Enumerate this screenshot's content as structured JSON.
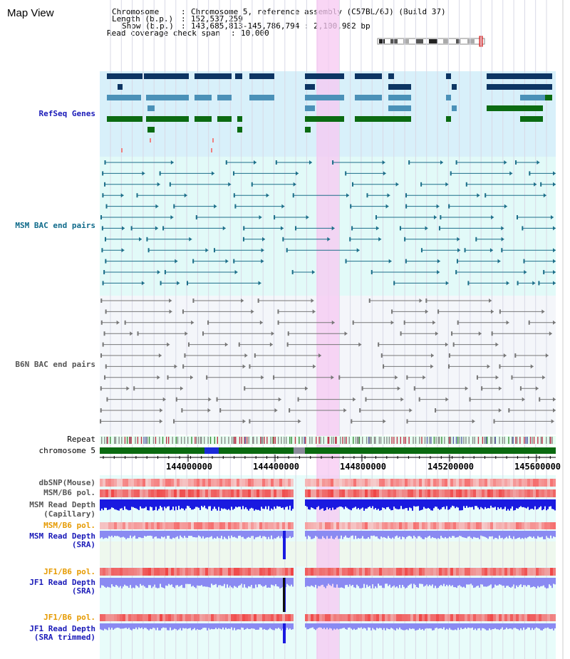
{
  "page": {
    "title": "Map View"
  },
  "header": {
    "chromosome_label": "Chromosome",
    "chromosome_value": "Chromosome 5, reference assembly (C57BL/6J) (Build 37)",
    "length_label": "Length (b.p.)",
    "length_value": "152,537,259",
    "show_label": "Show (b.p.)",
    "show_value": "143,685,813-145,786,794 : 2,100,982 bp",
    "coverage_label": "Read coverage check span",
    "coverage_value": "10,000"
  },
  "tracks": {
    "refseq": "RefSeq Genes",
    "msm_bac": "MSM BAC end pairs",
    "b6n_bac": "B6N BAC end pairs",
    "repeat": "Repeat",
    "chromosome": "chromosome 5",
    "dbsnp": "dbSNP(Mouse)",
    "msm_b6_pol": "MSM/B6 pol.",
    "msm_read_cap_1": "MSM Read Depth",
    "msm_read_cap_2": "(Capillary)",
    "msm_b6_pol2": "MSM/B6 pol.",
    "msm_read_sra_1": "MSM Read Depth",
    "msm_read_sra_2": "(SRA)",
    "jf1_b6_pol": "JF1/B6 pol.",
    "jf1_read_sra_1": "JF1 Read Depth",
    "jf1_read_sra_2": "(SRA)",
    "jf1_b6_pol2": "JF1/B6 pol.",
    "jf1_read_trim_1": "JF1 Read Depth",
    "jf1_read_trim_2": "(SRA trimmed)"
  },
  "axis": {
    "positions": [
      "144000000",
      "144400000",
      "144800000",
      "145200000",
      "145600000"
    ]
  },
  "colors": {
    "highlight": "#f8d8f4",
    "refseq_bg": "#d8f0fa",
    "msm_bg": "#e2faf8",
    "b6n_bg": "#f4f6fa",
    "gene_dark": "#0d3563",
    "gene_mid": "#4b91b8",
    "gene_green": "#0b6b12",
    "msm_pair": "#1d6f8a",
    "b6n_pair": "#777777",
    "depth_blue": "#1a1ae0",
    "depth_light": "#8a8af2",
    "pol_red": "#ef4a4a"
  }
}
